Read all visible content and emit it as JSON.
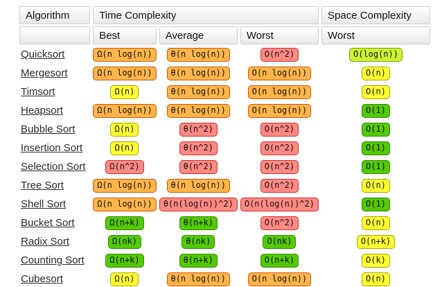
{
  "header": {
    "algorithm": "Algorithm",
    "time_complexity": "Time Complexity",
    "space_complexity": "Space Complexity",
    "sub": {
      "best": "Best",
      "average": "Average",
      "worst": "Worst",
      "space_worst": "Worst"
    }
  },
  "colors": {
    "red": {
      "bg": "#FF8983",
      "border": "#C9302C"
    },
    "orange": {
      "bg": "#FFB54A",
      "border": "#D35400"
    },
    "yellow": {
      "bg": "#FFFF32",
      "border": "#ABA000"
    },
    "chartreuse": {
      "bg": "#CCF32E",
      "border": "#79A000"
    },
    "green": {
      "bg": "#53CA05",
      "border": "#2E8B00"
    }
  },
  "rows": [
    {
      "name": "Quicksort",
      "best": {
        "text": "Ω(n log(n))",
        "level": "orange"
      },
      "average": {
        "text": "θ(n log(n))",
        "level": "orange"
      },
      "worst": {
        "text": "O(n^2)",
        "level": "red"
      },
      "space": {
        "text": "O(log(n))",
        "level": "chartreuse"
      }
    },
    {
      "name": "Mergesort",
      "best": {
        "text": "Ω(n log(n))",
        "level": "orange"
      },
      "average": {
        "text": "θ(n log(n))",
        "level": "orange"
      },
      "worst": {
        "text": "O(n log(n))",
        "level": "orange"
      },
      "space": {
        "text": "O(n)",
        "level": "yellow"
      }
    },
    {
      "name": "Timsort",
      "best": {
        "text": "Ω(n)",
        "level": "yellow"
      },
      "average": {
        "text": "θ(n log(n))",
        "level": "orange"
      },
      "worst": {
        "text": "O(n log(n))",
        "level": "orange"
      },
      "space": {
        "text": "O(n)",
        "level": "yellow"
      }
    },
    {
      "name": "Heapsort",
      "best": {
        "text": "Ω(n log(n))",
        "level": "orange"
      },
      "average": {
        "text": "θ(n log(n))",
        "level": "orange"
      },
      "worst": {
        "text": "O(n log(n))",
        "level": "orange"
      },
      "space": {
        "text": "O(1)",
        "level": "green"
      }
    },
    {
      "name": "Bubble Sort",
      "best": {
        "text": "Ω(n)",
        "level": "yellow"
      },
      "average": {
        "text": "θ(n^2)",
        "level": "red"
      },
      "worst": {
        "text": "O(n^2)",
        "level": "red"
      },
      "space": {
        "text": "O(1)",
        "level": "green"
      }
    },
    {
      "name": "Insertion Sort",
      "best": {
        "text": "Ω(n)",
        "level": "yellow"
      },
      "average": {
        "text": "θ(n^2)",
        "level": "red"
      },
      "worst": {
        "text": "O(n^2)",
        "level": "red"
      },
      "space": {
        "text": "O(1)",
        "level": "green"
      }
    },
    {
      "name": "Selection Sort",
      "best": {
        "text": "Ω(n^2)",
        "level": "red"
      },
      "average": {
        "text": "θ(n^2)",
        "level": "red"
      },
      "worst": {
        "text": "O(n^2)",
        "level": "red"
      },
      "space": {
        "text": "O(1)",
        "level": "green"
      }
    },
    {
      "name": "Tree Sort",
      "best": {
        "text": "Ω(n log(n))",
        "level": "orange"
      },
      "average": {
        "text": "θ(n log(n))",
        "level": "orange"
      },
      "worst": {
        "text": "O(n^2)",
        "level": "red"
      },
      "space": {
        "text": "O(n)",
        "level": "yellow"
      }
    },
    {
      "name": "Shell Sort",
      "best": {
        "text": "Ω(n log(n))",
        "level": "orange"
      },
      "average": {
        "text": "θ(n(log(n))^2)",
        "level": "red"
      },
      "worst": {
        "text": "O(n(log(n))^2)",
        "level": "red"
      },
      "space": {
        "text": "O(1)",
        "level": "green"
      }
    },
    {
      "name": "Bucket Sort",
      "best": {
        "text": "Ω(n+k)",
        "level": "green"
      },
      "average": {
        "text": "θ(n+k)",
        "level": "green"
      },
      "worst": {
        "text": "O(n^2)",
        "level": "red"
      },
      "space": {
        "text": "O(n)",
        "level": "yellow"
      }
    },
    {
      "name": "Radix Sort",
      "best": {
        "text": "Ω(nk)",
        "level": "green"
      },
      "average": {
        "text": "θ(nk)",
        "level": "green"
      },
      "worst": {
        "text": "O(nk)",
        "level": "green"
      },
      "space": {
        "text": "O(n+k)",
        "level": "yellow"
      }
    },
    {
      "name": "Counting Sort",
      "best": {
        "text": "Ω(n+k)",
        "level": "green"
      },
      "average": {
        "text": "θ(n+k)",
        "level": "green"
      },
      "worst": {
        "text": "O(n+k)",
        "level": "green"
      },
      "space": {
        "text": "O(k)",
        "level": "yellow"
      }
    },
    {
      "name": "Cubesort",
      "best": {
        "text": "Ω(n)",
        "level": "yellow"
      },
      "average": {
        "text": "θ(n log(n))",
        "level": "orange"
      },
      "worst": {
        "text": "O(n log(n))",
        "level": "orange"
      },
      "space": {
        "text": "O(n)",
        "level": "yellow"
      }
    }
  ]
}
